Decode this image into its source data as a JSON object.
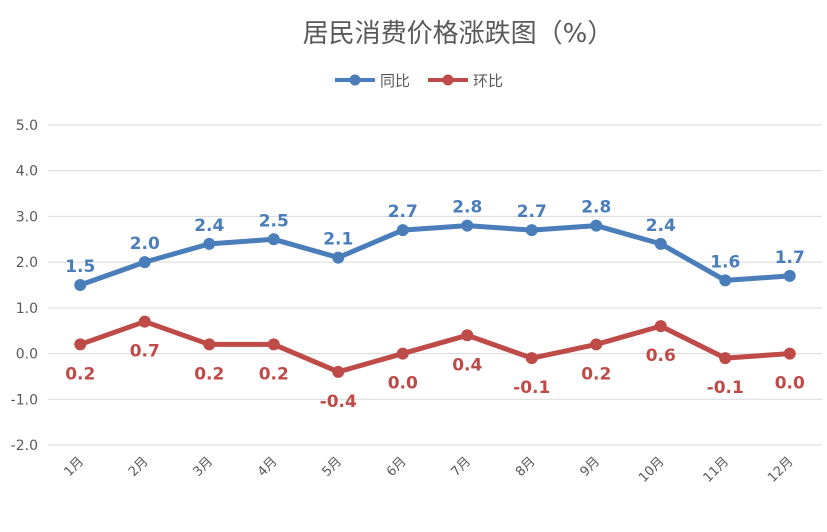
{
  "chart_data": {
    "type": "line",
    "title": "居民消费价格涨跌图（%）",
    "categories": [
      "1月",
      "2月",
      "3月",
      "4月",
      "5月",
      "6月",
      "7月",
      "8月",
      "9月",
      "10月",
      "11月",
      "12月"
    ],
    "series": [
      {
        "name": "同比",
        "color": "#4a7ebb",
        "values": [
          1.5,
          2.0,
          2.4,
          2.5,
          2.1,
          2.7,
          2.8,
          2.7,
          2.8,
          2.4,
          1.6,
          1.7
        ]
      },
      {
        "name": "环比",
        "color": "#be4b48",
        "values": [
          0.2,
          0.7,
          0.2,
          0.2,
          -0.4,
          0.0,
          0.4,
          -0.1,
          0.2,
          0.6,
          -0.1,
          0.0
        ]
      }
    ],
    "ylim": [
      -2.0,
      5.0
    ],
    "yticks": [
      "5.0",
      "4.0",
      "3.0",
      "2.0",
      "1.0",
      "0.0",
      "-1.0",
      "-2.0"
    ],
    "xlabel": "",
    "ylabel": "",
    "grid": true,
    "legend": "top-center"
  }
}
